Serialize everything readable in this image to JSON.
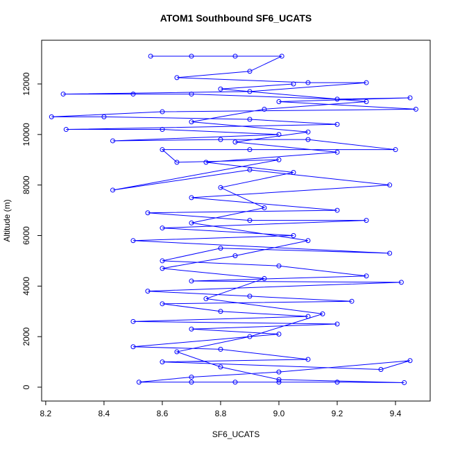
{
  "chart_data": {
    "type": "line",
    "title": "ATOM1 Southbound SF6_UCATS",
    "xlabel": "SF6_UCATS",
    "ylabel": "Altitude (m)",
    "xlim": [
      8.186,
      9.519
    ],
    "ylim": [
      -549,
      13730
    ],
    "xticks": [
      8.2,
      8.4,
      8.6,
      8.8,
      {
        "value": 9.0,
        "label": "9.0"
      },
      9.2,
      9.4
    ],
    "yticks": [
      0,
      2000,
      4000,
      6000,
      8000,
      10000,
      12000
    ],
    "x": [
      8.56,
      8.7,
      8.85,
      9.01,
      8.9,
      8.65,
      9.1,
      9.3,
      8.9,
      8.26,
      8.5,
      8.7,
      9.2,
      9.45,
      9.0,
      9.47,
      8.6,
      8.22,
      8.4,
      8.9,
      9.2,
      8.27,
      8.6,
      9.0,
      8.43,
      8.8,
      9.1,
      9.4,
      8.9,
      8.6,
      8.65,
      9.0,
      8.43,
      8.9,
      9.38,
      8.7,
      9.2,
      8.55,
      8.9,
      9.3,
      8.6,
      9.05,
      8.5,
      9.38,
      8.8,
      8.6,
      9.0,
      9.3,
      8.7,
      9.42,
      8.55,
      8.9,
      9.25,
      8.6,
      8.8,
      9.1,
      8.5,
      9.2,
      8.7,
      9.0,
      8.5,
      8.8,
      9.1,
      8.6,
      9.35,
      9.45,
      9.0,
      8.7,
      8.52,
      8.7,
      8.85,
      9.0,
      9.2,
      9.43,
      9.0,
      8.8,
      8.65,
      8.9,
      9.15,
      8.75,
      8.95,
      8.6,
      8.85,
      9.1,
      8.7,
      8.95,
      8.8,
      9.05,
      8.75,
      9.2,
      8.85,
      9.1,
      8.7,
      8.95,
      9.3,
      8.8,
      9.05
    ],
    "series": [
      {
        "name": "Altitude",
        "color": "#0000ff",
        "values": [
          13100,
          13100,
          13100,
          13100,
          12500,
          12250,
          12050,
          12050,
          11700,
          11600,
          11600,
          11600,
          11400,
          11450,
          11300,
          11000,
          10900,
          10700,
          10700,
          10600,
          10400,
          10200,
          10200,
          10000,
          9750,
          9800,
          9800,
          9400,
          9400,
          9400,
          8900,
          9000,
          7800,
          8600,
          8000,
          7500,
          7000,
          6900,
          6600,
          6600,
          6300,
          6000,
          5800,
          5300,
          5500,
          5000,
          4800,
          4400,
          4200,
          4150,
          3800,
          3600,
          3400,
          3300,
          3000,
          2800,
          2600,
          2500,
          2300,
          2100,
          1600,
          1500,
          1100,
          1000,
          700,
          1050,
          600,
          400,
          200,
          200,
          200,
          200,
          200,
          180,
          300,
          800,
          1400,
          2000,
          2900,
          3500,
          4300,
          4700,
          5200,
          5800,
          6500,
          7100,
          7900,
          8500,
          8900,
          9300,
          9700,
          10100,
          10500,
          11000,
          11300,
          11800,
          12000
        ]
      }
    ]
  }
}
